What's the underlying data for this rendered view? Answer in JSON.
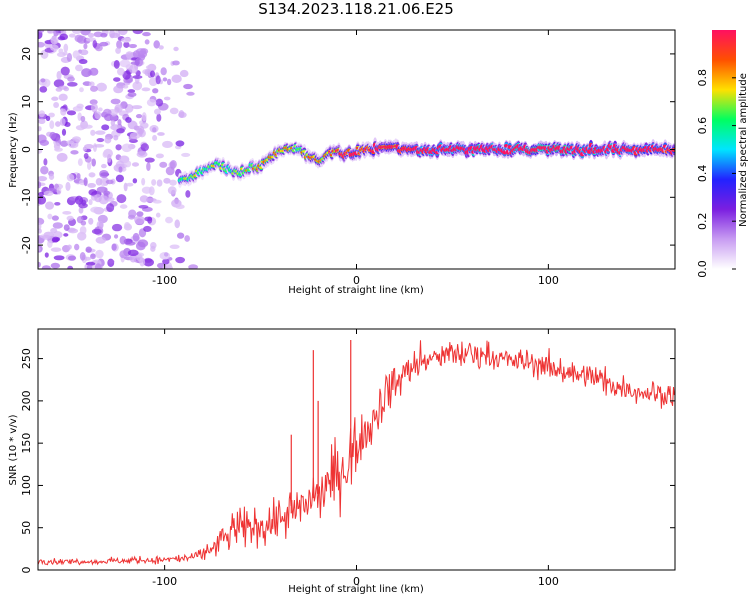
{
  "title": "S134.2023.118.21.06.E25",
  "chart_data": [
    {
      "type": "heatmap",
      "title": "S134.2023.118.21.06.E25",
      "xlabel": "Height of straight line (km)",
      "ylabel": "Frequency (Hz)",
      "xlim": [
        -166,
        166
      ],
      "ylim": [
        -25,
        25
      ],
      "x_ticks": [
        -100,
        0,
        100
      ],
      "y_ticks": [
        -20,
        -10,
        0,
        10,
        20
      ],
      "colorbar": {
        "label": "Normalized spectral amplitude",
        "range": [
          0,
          1
        ],
        "ticks": [
          "0.0",
          "0.2",
          "0.4",
          "0.6",
          "0.8"
        ],
        "colormap": [
          "#ffffff",
          "#c89cf2",
          "#7b1fe0",
          "#2222ff",
          "#00e5ff",
          "#00ff60",
          "#ffe000",
          "#ff5000",
          "#ff1060"
        ]
      },
      "noise_region_x": [
        -166,
        -82
      ],
      "ridge": {
        "x": [
          -92,
          -85,
          -78,
          -72,
          -65,
          -58,
          -50,
          -42,
          -36,
          -30,
          -24,
          -18,
          -12,
          -6,
          0,
          6,
          12,
          20,
          30,
          50,
          80,
          110,
          140,
          166
        ],
        "y": [
          -6.5,
          -5.5,
          -4,
          -2.5,
          -5,
          -4.5,
          -3,
          -1,
          0.5,
          0,
          -1.5,
          -2,
          -0.5,
          -0.8,
          -0.5,
          0,
          0.5,
          0.3,
          0,
          0,
          0,
          0,
          0,
          0
        ],
        "amp": [
          0.35,
          0.4,
          0.35,
          0.4,
          0.35,
          0.4,
          0.45,
          0.45,
          0.45,
          0.4,
          0.5,
          0.45,
          0.5,
          0.55,
          0.6,
          0.6,
          0.65,
          0.6,
          0.7,
          0.8,
          0.85,
          0.9,
          0.75,
          0.6
        ]
      }
    },
    {
      "type": "line",
      "xlabel": "Height of straight line (km)",
      "ylabel": "SNR (10 * v/v)",
      "xlim": [
        -166,
        166
      ],
      "ylim": [
        0,
        285
      ],
      "x_ticks": [
        -100,
        0,
        100
      ],
      "y_ticks": [
        0,
        50,
        100,
        150,
        200,
        250
      ],
      "series": [
        {
          "color": "#ee3333",
          "x": [
            -166,
            -140,
            -120,
            -100,
            -90,
            -80,
            -75,
            -70,
            -65,
            -60,
            -55,
            -50,
            -45,
            -40,
            -35,
            -30,
            -25,
            -20,
            -15,
            -10,
            -5,
            0,
            5,
            10,
            15,
            20,
            25,
            30,
            40,
            50,
            60,
            70,
            80,
            90,
            100,
            110,
            120,
            130,
            140,
            150,
            160,
            166
          ],
          "values": [
            10,
            10,
            11,
            12,
            14,
            18,
            25,
            35,
            45,
            50,
            50,
            50,
            55,
            60,
            65,
            75,
            80,
            90,
            100,
            110,
            125,
            145,
            160,
            185,
            205,
            220,
            232,
            240,
            250,
            255,
            255,
            252,
            248,
            245,
            240,
            235,
            228,
            222,
            215,
            210,
            208,
            205
          ],
          "noise": [
            3,
            3,
            3,
            4,
            5,
            8,
            12,
            15,
            20,
            22,
            25,
            25,
            25,
            25,
            25,
            28,
            28,
            28,
            28,
            30,
            30,
            30,
            28,
            25,
            25,
            22,
            20,
            18,
            15,
            15,
            15,
            15,
            15,
            15,
            15,
            15,
            14,
            14,
            13,
            13,
            12,
            12
          ],
          "spikes": [
            {
              "x": -22.5,
              "y": 260
            },
            {
              "x": -3,
              "y": 272
            },
            {
              "x": -34,
              "y": 160
            },
            {
              "x": -20,
              "y": 200
            }
          ]
        }
      ]
    }
  ]
}
